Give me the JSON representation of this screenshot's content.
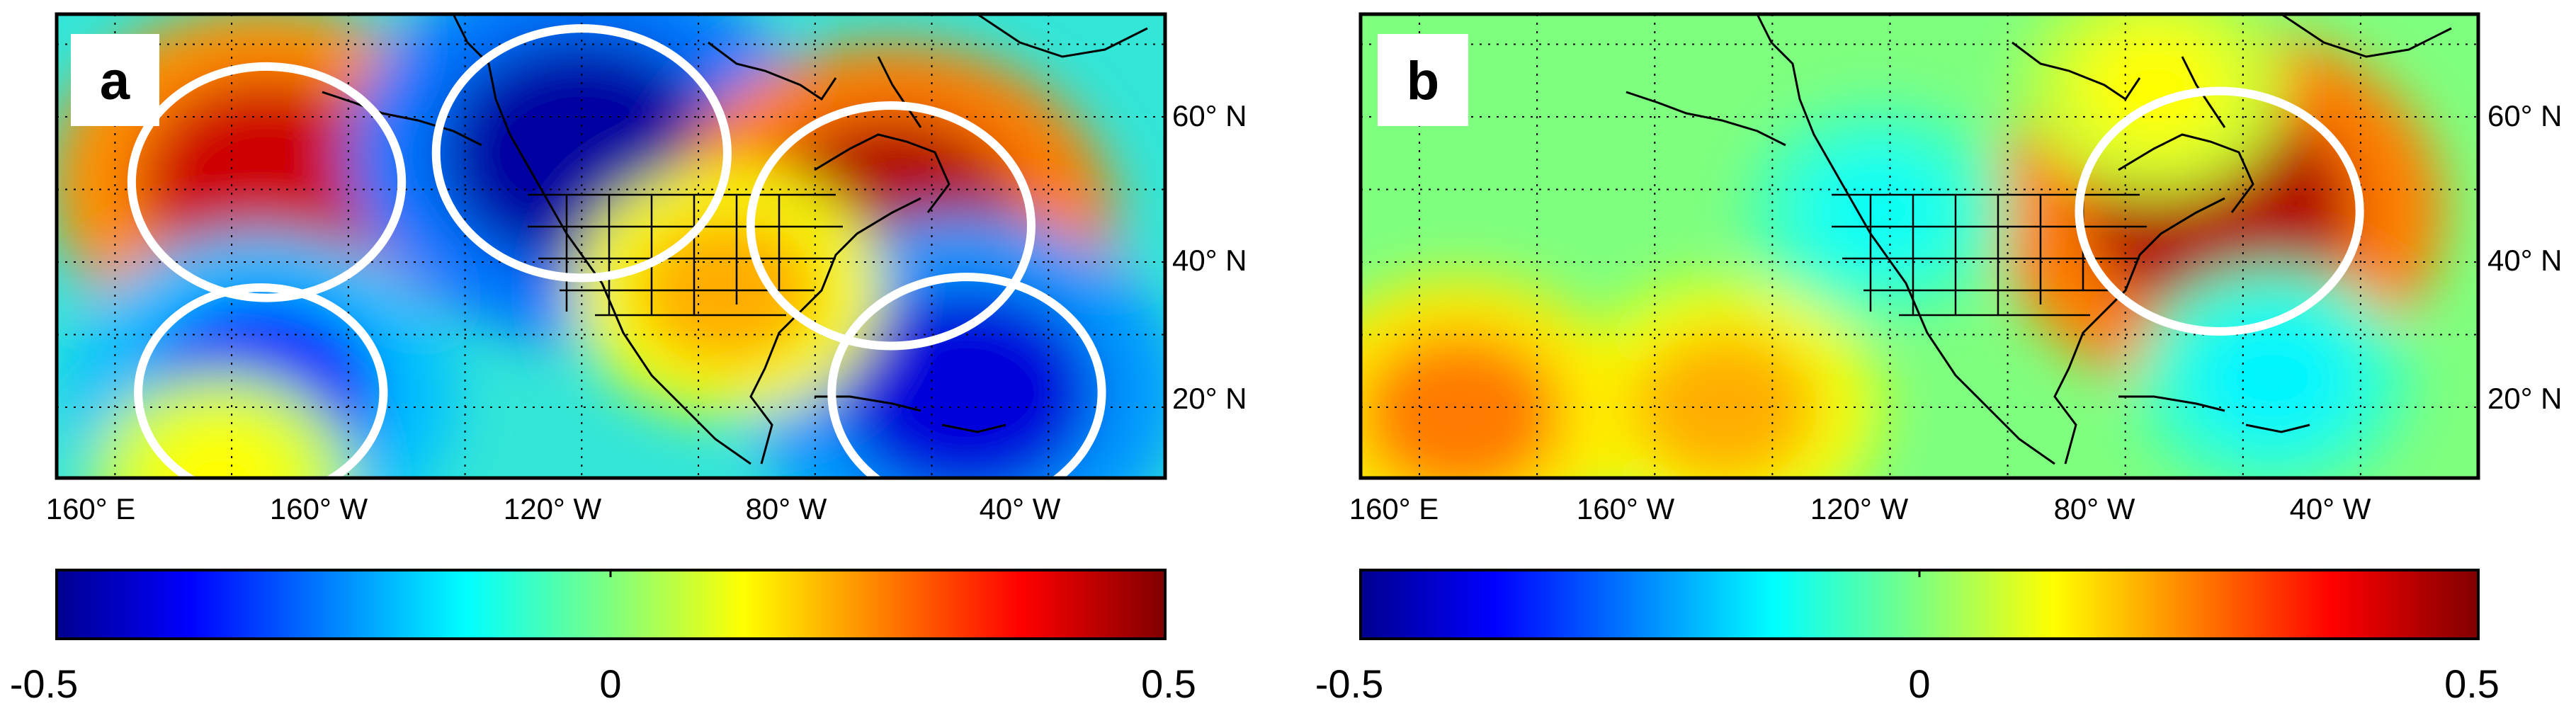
{
  "panels": [
    {
      "id": "a",
      "label": "a",
      "lon_ticks": [
        "160° E",
        "160° W",
        "120° W",
        "80° W",
        "40° W"
      ],
      "lat_ticks": [
        "60° N",
        "40° N",
        "20° N"
      ],
      "colorbar": {
        "min": "-0.5",
        "mid": "0",
        "max": "0.5"
      },
      "anomalies": [
        {
          "lon": -174,
          "lat": 51,
          "value": 0.42,
          "significant": true
        },
        {
          "lon": -120,
          "lat": 55,
          "value": -0.48,
          "significant": true
        },
        {
          "lon": -67,
          "lat": 45,
          "value": 0.45,
          "significant": true
        },
        {
          "lon": -54,
          "lat": 22,
          "value": -0.42,
          "significant": true
        },
        {
          "lon": -175,
          "lat": 22,
          "value": -0.35,
          "significant": true
        },
        {
          "lon": -95,
          "lat": 36,
          "value": 0.2,
          "significant": false
        },
        {
          "lon": 178,
          "lat": 10,
          "value": 0.12,
          "significant": false
        }
      ]
    },
    {
      "id": "b",
      "label": "b",
      "lon_ticks": [
        "160° E",
        "160° W",
        "120° W",
        "80° W",
        "40° W"
      ],
      "lat_ticks": [
        "60° N",
        "40° N",
        "20° N"
      ],
      "colorbar": {
        "min": "-0.5",
        "mid": "0",
        "max": "0.5"
      },
      "anomalies": [
        {
          "lon": -64,
          "lat": 47,
          "value": 0.45,
          "significant": true
        },
        {
          "lon": -148,
          "lat": 20,
          "value": 0.2,
          "significant": false
        },
        {
          "lon": 167,
          "lat": 19,
          "value": 0.25,
          "significant": false
        },
        {
          "lon": -122,
          "lat": 47,
          "value": -0.12,
          "significant": false
        },
        {
          "lon": -55,
          "lat": 24,
          "value": -0.14,
          "significant": false
        },
        {
          "lon": -75,
          "lat": 64,
          "value": 0.12,
          "significant": false
        }
      ]
    }
  ],
  "colors": {
    "colormap": "jet",
    "significance_contour": "#ffffff",
    "coastline": "#000000"
  }
}
